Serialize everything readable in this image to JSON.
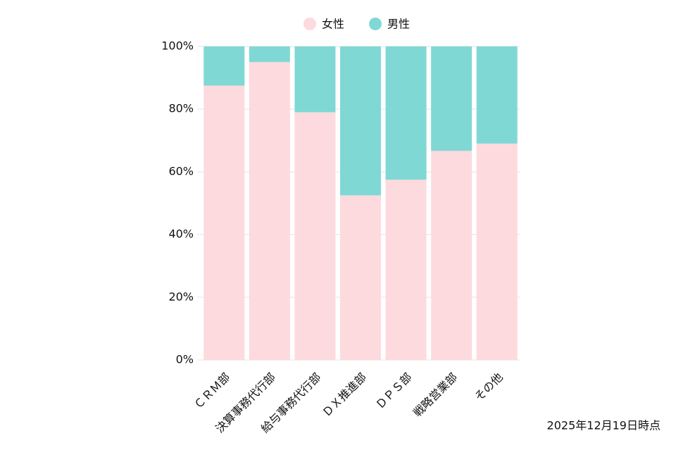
{
  "chart_data": {
    "type": "stacked_bar",
    "categories": [
      "ＣＲＭ部",
      "決算事務代行部",
      "給与事務代行部",
      "ＤＸ推進部",
      "ＤＰＳ部",
      "戦略営業部",
      "その他"
    ],
    "series": [
      {
        "name": "女性",
        "color": "#fddadd",
        "values": [
          87.5,
          95,
          79,
          52.5,
          57.5,
          66.7,
          69
        ]
      },
      {
        "name": "男性",
        "color": "#80d8d5",
        "values": [
          12.5,
          5,
          21,
          47.5,
          42.5,
          33.3,
          31
        ]
      }
    ],
    "ylim": [
      0,
      100
    ],
    "yticks": [
      {
        "value": 0,
        "label": "0%"
      },
      {
        "value": 20,
        "label": "20%"
      },
      {
        "value": 40,
        "label": "40%"
      },
      {
        "value": 60,
        "label": "60%"
      },
      {
        "value": 80,
        "label": "80%"
      },
      {
        "value": 100,
        "label": "100%"
      }
    ],
    "grid": true,
    "legend": "top",
    "annotation": "2025年12月19日時点"
  }
}
